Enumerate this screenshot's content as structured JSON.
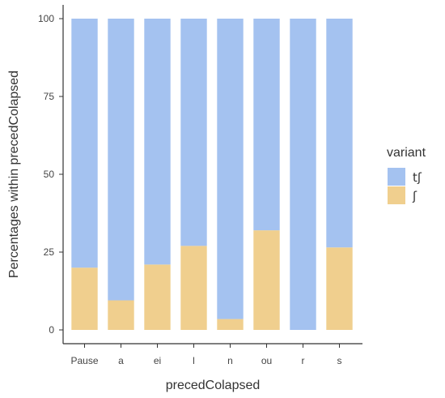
{
  "chart_data": {
    "type": "bar",
    "stacked": true,
    "xlabel": "precedColapsed",
    "ylabel": "Percentages within precedColapsed",
    "ylim": [
      0,
      100
    ],
    "yticks": [
      "0",
      "25",
      "50",
      "75",
      "100"
    ],
    "categories": [
      "Pause",
      "a",
      "ei",
      "l",
      "n",
      "ou",
      "r",
      "s"
    ],
    "series": [
      {
        "name": "tʃ",
        "values": [
          80,
          90.5,
          79,
          73,
          96.5,
          68,
          100,
          73.5
        ]
      },
      {
        "name": "ʃ",
        "values": [
          20,
          9.5,
          21,
          27,
          3.5,
          32,
          0,
          26.5
        ]
      }
    ],
    "legend": {
      "title": "variant",
      "position": "right"
    },
    "grid": false,
    "colors": {
      "tʃ": "#a4c2f0",
      "ʃ": "#f0cf8e",
      "axis": "#333333"
    }
  }
}
